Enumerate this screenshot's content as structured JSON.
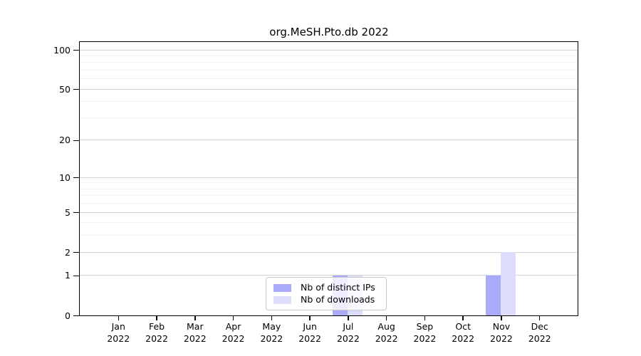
{
  "chart_data": {
    "type": "bar",
    "title": "org.MeSH.Pto.db 2022",
    "x_axis": {
      "categories": [
        {
          "month": "Jan",
          "year": "2022"
        },
        {
          "month": "Feb",
          "year": "2022"
        },
        {
          "month": "Mar",
          "year": "2022"
        },
        {
          "month": "Apr",
          "year": "2022"
        },
        {
          "month": "May",
          "year": "2022"
        },
        {
          "month": "Jun",
          "year": "2022"
        },
        {
          "month": "Jul",
          "year": "2022"
        },
        {
          "month": "Aug",
          "year": "2022"
        },
        {
          "month": "Sep",
          "year": "2022"
        },
        {
          "month": "Oct",
          "year": "2022"
        },
        {
          "month": "Nov",
          "year": "2022"
        },
        {
          "month": "Dec",
          "year": "2022"
        }
      ]
    },
    "y_axis": {
      "scale": "log1p",
      "ticks": [
        0,
        1,
        2,
        5,
        10,
        20,
        50,
        100
      ],
      "minor_gridlines": [
        3,
        4,
        6,
        7,
        8,
        9,
        30,
        40,
        60,
        70,
        80,
        90
      ],
      "ylim": [
        0,
        115
      ]
    },
    "series": [
      {
        "name": "Nb of distinct IPs",
        "color": "#a9abfa",
        "values": [
          0,
          0,
          0,
          0,
          0,
          0,
          1,
          0,
          0,
          0,
          1,
          0
        ]
      },
      {
        "name": "Nb of downloads",
        "color": "#dbddfa",
        "values": [
          0,
          0,
          0,
          0,
          0,
          0,
          1,
          0,
          0,
          0,
          2,
          0
        ]
      }
    ],
    "legend": {
      "position": "inside-bottom-center"
    },
    "colors": {
      "grid_major": "#d4d4d4",
      "grid_minor": "#f2f2f2",
      "axis": "#000000",
      "background": "#ffffff"
    }
  }
}
